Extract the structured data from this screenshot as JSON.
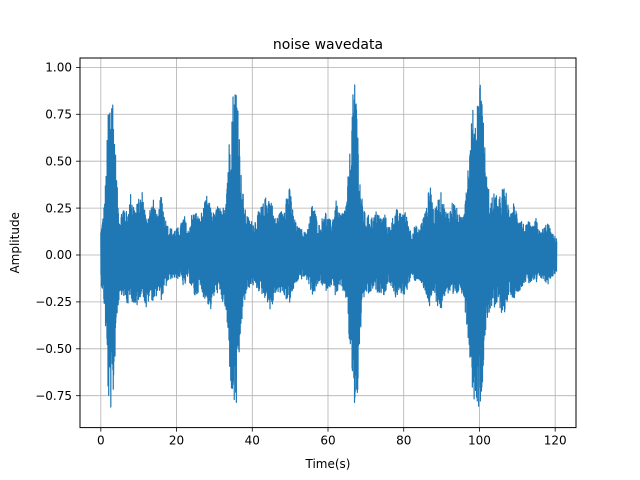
{
  "chart_data": {
    "type": "line",
    "title": "noise wavedata",
    "xlabel": "Time(s)",
    "ylabel": "Amplitude",
    "xlim": [
      -5.5,
      125.5
    ],
    "ylim": [
      -0.92,
      1.05
    ],
    "xticks": [
      0,
      20,
      40,
      60,
      80,
      100,
      120
    ],
    "yticks": [
      -0.75,
      -0.5,
      -0.25,
      0.0,
      0.25,
      0.5,
      0.75,
      1.0
    ],
    "xtick_labels": [
      "0",
      "20",
      "40",
      "60",
      "80",
      "100",
      "120"
    ],
    "ytick_labels": [
      "−0.75",
      "−0.50",
      "−0.25",
      "0.00",
      "0.25",
      "0.50",
      "0.75",
      "1.00"
    ],
    "grid": true,
    "line_color": "#1f77b4",
    "series": [
      {
        "envelope_upper": [
          [
            0.0,
            0.14
          ],
          [
            0.5,
            0.2
          ],
          [
            1.0,
            0.3
          ],
          [
            1.5,
            0.5
          ],
          [
            2.0,
            0.85
          ],
          [
            2.5,
            0.88
          ],
          [
            3.0,
            0.93
          ],
          [
            3.5,
            0.75
          ],
          [
            4.0,
            0.5
          ],
          [
            4.5,
            0.3
          ],
          [
            5.0,
            0.2
          ],
          [
            6.0,
            0.28
          ],
          [
            7.0,
            0.22
          ],
          [
            8.0,
            0.35
          ],
          [
            9.0,
            0.25
          ],
          [
            10.0,
            0.3
          ],
          [
            11.0,
            0.35
          ],
          [
            12.0,
            0.2
          ],
          [
            13.0,
            0.26
          ],
          [
            14.0,
            0.3
          ],
          [
            15.0,
            0.2
          ],
          [
            16.0,
            0.34
          ],
          [
            17.0,
            0.2
          ],
          [
            18.0,
            0.15
          ],
          [
            19.0,
            0.14
          ],
          [
            20.0,
            0.14
          ],
          [
            21.0,
            0.16
          ],
          [
            22.0,
            0.22
          ],
          [
            23.0,
            0.13
          ],
          [
            24.0,
            0.22
          ],
          [
            25.0,
            0.24
          ],
          [
            26.0,
            0.2
          ],
          [
            27.0,
            0.25
          ],
          [
            28.0,
            0.32
          ],
          [
            29.0,
            0.26
          ],
          [
            30.0,
            0.22
          ],
          [
            31.0,
            0.28
          ],
          [
            32.0,
            0.22
          ],
          [
            33.0,
            0.35
          ],
          [
            33.5,
            0.5
          ],
          [
            34.0,
            0.65
          ],
          [
            34.5,
            0.8
          ],
          [
            35.0,
            0.9
          ],
          [
            35.5,
            0.92
          ],
          [
            36.0,
            1.0
          ],
          [
            36.5,
            0.7
          ],
          [
            37.0,
            0.45
          ],
          [
            37.5,
            0.35
          ],
          [
            38.0,
            0.25
          ],
          [
            39.0,
            0.2
          ],
          [
            40.0,
            0.18
          ],
          [
            41.0,
            0.2
          ],
          [
            42.0,
            0.25
          ],
          [
            43.0,
            0.28
          ],
          [
            44.0,
            0.34
          ],
          [
            45.0,
            0.3
          ],
          [
            46.0,
            0.2
          ],
          [
            47.0,
            0.22
          ],
          [
            48.0,
            0.25
          ],
          [
            49.0,
            0.34
          ],
          [
            50.0,
            0.36
          ],
          [
            51.0,
            0.2
          ],
          [
            52.0,
            0.15
          ],
          [
            53.0,
            0.14
          ],
          [
            54.0,
            0.12
          ],
          [
            55.0,
            0.18
          ],
          [
            56.0,
            0.3
          ],
          [
            57.0,
            0.2
          ],
          [
            58.0,
            0.15
          ],
          [
            59.0,
            0.26
          ],
          [
            60.0,
            0.2
          ],
          [
            61.0,
            0.18
          ],
          [
            62.0,
            0.3
          ],
          [
            63.0,
            0.22
          ],
          [
            64.0,
            0.24
          ],
          [
            65.0,
            0.3
          ],
          [
            65.5,
            0.5
          ],
          [
            66.0,
            0.6
          ],
          [
            66.5,
            0.85
          ],
          [
            67.0,
            0.9
          ],
          [
            67.5,
            0.98
          ],
          [
            68.0,
            0.6
          ],
          [
            68.5,
            0.4
          ],
          [
            69.0,
            0.3
          ],
          [
            70.0,
            0.2
          ],
          [
            71.0,
            0.22
          ],
          [
            72.0,
            0.2
          ],
          [
            73.0,
            0.25
          ],
          [
            74.0,
            0.2
          ],
          [
            75.0,
            0.22
          ],
          [
            76.0,
            0.15
          ],
          [
            77.0,
            0.2
          ],
          [
            78.0,
            0.25
          ],
          [
            79.0,
            0.22
          ],
          [
            80.0,
            0.25
          ],
          [
            81.0,
            0.2
          ],
          [
            82.0,
            0.12
          ],
          [
            83.0,
            0.16
          ],
          [
            84.0,
            0.14
          ],
          [
            85.0,
            0.2
          ],
          [
            86.0,
            0.25
          ],
          [
            87.0,
            0.42
          ],
          [
            88.0,
            0.22
          ],
          [
            89.0,
            0.3
          ],
          [
            90.0,
            0.34
          ],
          [
            91.0,
            0.24
          ],
          [
            92.0,
            0.24
          ],
          [
            93.0,
            0.3
          ],
          [
            94.0,
            0.25
          ],
          [
            95.0,
            0.2
          ],
          [
            96.0,
            0.3
          ],
          [
            97.0,
            0.5
          ],
          [
            97.5,
            0.6
          ],
          [
            98.0,
            0.75
          ],
          [
            98.5,
            0.8
          ],
          [
            99.0,
            0.75
          ],
          [
            99.5,
            0.85
          ],
          [
            100.0,
            0.95
          ],
          [
            100.5,
            1.0
          ],
          [
            101.0,
            0.75
          ],
          [
            101.5,
            0.55
          ],
          [
            102.0,
            0.4
          ],
          [
            103.0,
            0.3
          ],
          [
            104.0,
            0.35
          ],
          [
            105.0,
            0.28
          ],
          [
            106.0,
            0.37
          ],
          [
            107.0,
            0.35
          ],
          [
            108.0,
            0.2
          ],
          [
            109.0,
            0.28
          ],
          [
            110.0,
            0.24
          ],
          [
            111.0,
            0.2
          ],
          [
            112.0,
            0.15
          ],
          [
            113.0,
            0.18
          ],
          [
            114.0,
            0.15
          ],
          [
            115.0,
            0.2
          ],
          [
            116.0,
            0.12
          ],
          [
            117.0,
            0.15
          ],
          [
            118.0,
            0.18
          ],
          [
            119.0,
            0.12
          ],
          [
            120.0,
            0.1
          ],
          [
            120.4,
            0.1
          ]
        ],
        "envelope_lower": [
          [
            0.0,
            -0.15
          ],
          [
            0.5,
            -0.2
          ],
          [
            1.0,
            -0.3
          ],
          [
            1.5,
            -0.5
          ],
          [
            2.0,
            -0.8
          ],
          [
            2.5,
            -0.82
          ],
          [
            3.0,
            -0.86
          ],
          [
            3.5,
            -0.7
          ],
          [
            4.0,
            -0.4
          ],
          [
            4.5,
            -0.3
          ],
          [
            5.0,
            -0.2
          ],
          [
            6.0,
            -0.22
          ],
          [
            7.0,
            -0.28
          ],
          [
            8.0,
            -0.22
          ],
          [
            9.0,
            -0.32
          ],
          [
            10.0,
            -0.24
          ],
          [
            11.0,
            -0.2
          ],
          [
            12.0,
            -0.3
          ],
          [
            13.0,
            -0.22
          ],
          [
            14.0,
            -0.26
          ],
          [
            15.0,
            -0.2
          ],
          [
            16.0,
            -0.24
          ],
          [
            17.0,
            -0.18
          ],
          [
            18.0,
            -0.14
          ],
          [
            19.0,
            -0.12
          ],
          [
            20.0,
            -0.13
          ],
          [
            21.0,
            -0.12
          ],
          [
            22.0,
            -0.18
          ],
          [
            23.0,
            -0.12
          ],
          [
            24.0,
            -0.18
          ],
          [
            25.0,
            -0.24
          ],
          [
            26.0,
            -0.18
          ],
          [
            27.0,
            -0.22
          ],
          [
            28.0,
            -0.25
          ],
          [
            29.0,
            -0.3
          ],
          [
            30.0,
            -0.22
          ],
          [
            31.0,
            -0.2
          ],
          [
            32.0,
            -0.25
          ],
          [
            33.0,
            -0.3
          ],
          [
            33.5,
            -0.45
          ],
          [
            34.0,
            -0.6
          ],
          [
            34.5,
            -0.75
          ],
          [
            35.0,
            -0.82
          ],
          [
            35.5,
            -0.84
          ],
          [
            36.0,
            -0.82
          ],
          [
            36.5,
            -0.6
          ],
          [
            37.0,
            -0.4
          ],
          [
            37.5,
            -0.32
          ],
          [
            38.0,
            -0.25
          ],
          [
            39.0,
            -0.18
          ],
          [
            40.0,
            -0.16
          ],
          [
            41.0,
            -0.18
          ],
          [
            42.0,
            -0.2
          ],
          [
            43.0,
            -0.22
          ],
          [
            44.0,
            -0.25
          ],
          [
            45.0,
            -0.32
          ],
          [
            46.0,
            -0.2
          ],
          [
            47.0,
            -0.22
          ],
          [
            48.0,
            -0.2
          ],
          [
            49.0,
            -0.24
          ],
          [
            50.0,
            -0.26
          ],
          [
            51.0,
            -0.18
          ],
          [
            52.0,
            -0.14
          ],
          [
            53.0,
            -0.13
          ],
          [
            54.0,
            -0.12
          ],
          [
            55.0,
            -0.16
          ],
          [
            56.0,
            -0.22
          ],
          [
            57.0,
            -0.18
          ],
          [
            58.0,
            -0.14
          ],
          [
            59.0,
            -0.2
          ],
          [
            60.0,
            -0.18
          ],
          [
            61.0,
            -0.16
          ],
          [
            62.0,
            -0.22
          ],
          [
            63.0,
            -0.18
          ],
          [
            64.0,
            -0.2
          ],
          [
            65.0,
            -0.25
          ],
          [
            65.5,
            -0.45
          ],
          [
            66.0,
            -0.55
          ],
          [
            66.5,
            -0.7
          ],
          [
            67.0,
            -0.82
          ],
          [
            67.5,
            -0.86
          ],
          [
            68.0,
            -0.7
          ],
          [
            68.5,
            -0.45
          ],
          [
            69.0,
            -0.3
          ],
          [
            70.0,
            -0.2
          ],
          [
            71.0,
            -0.22
          ],
          [
            72.0,
            -0.18
          ],
          [
            73.0,
            -0.2
          ],
          [
            74.0,
            -0.2
          ],
          [
            75.0,
            -0.22
          ],
          [
            76.0,
            -0.14
          ],
          [
            77.0,
            -0.18
          ],
          [
            78.0,
            -0.24
          ],
          [
            79.0,
            -0.2
          ],
          [
            80.0,
            -0.22
          ],
          [
            81.0,
            -0.18
          ],
          [
            82.0,
            -0.12
          ],
          [
            83.0,
            -0.14
          ],
          [
            84.0,
            -0.13
          ],
          [
            85.0,
            -0.18
          ],
          [
            86.0,
            -0.22
          ],
          [
            87.0,
            -0.3
          ],
          [
            88.0,
            -0.2
          ],
          [
            89.0,
            -0.28
          ],
          [
            90.0,
            -0.3
          ],
          [
            91.0,
            -0.2
          ],
          [
            92.0,
            -0.22
          ],
          [
            93.0,
            -0.25
          ],
          [
            94.0,
            -0.22
          ],
          [
            95.0,
            -0.18
          ],
          [
            96.0,
            -0.25
          ],
          [
            97.0,
            -0.45
          ],
          [
            97.5,
            -0.55
          ],
          [
            98.0,
            -0.7
          ],
          [
            98.5,
            -0.78
          ],
          [
            99.0,
            -0.75
          ],
          [
            99.5,
            -0.8
          ],
          [
            100.0,
            -0.82
          ],
          [
            100.5,
            -0.8
          ],
          [
            101.0,
            -0.6
          ],
          [
            101.5,
            -0.45
          ],
          [
            102.0,
            -0.35
          ],
          [
            103.0,
            -0.28
          ],
          [
            104.0,
            -0.3
          ],
          [
            105.0,
            -0.26
          ],
          [
            106.0,
            -0.32
          ],
          [
            107.0,
            -0.3
          ],
          [
            108.0,
            -0.2
          ],
          [
            109.0,
            -0.24
          ],
          [
            110.0,
            -0.2
          ],
          [
            111.0,
            -0.18
          ],
          [
            112.0,
            -0.14
          ],
          [
            113.0,
            -0.16
          ],
          [
            114.0,
            -0.14
          ],
          [
            115.0,
            -0.16
          ],
          [
            116.0,
            -0.12
          ],
          [
            117.0,
            -0.14
          ],
          [
            118.0,
            -0.16
          ],
          [
            119.0,
            -0.12
          ],
          [
            120.0,
            -0.1
          ],
          [
            120.4,
            -0.1
          ]
        ]
      }
    ]
  }
}
